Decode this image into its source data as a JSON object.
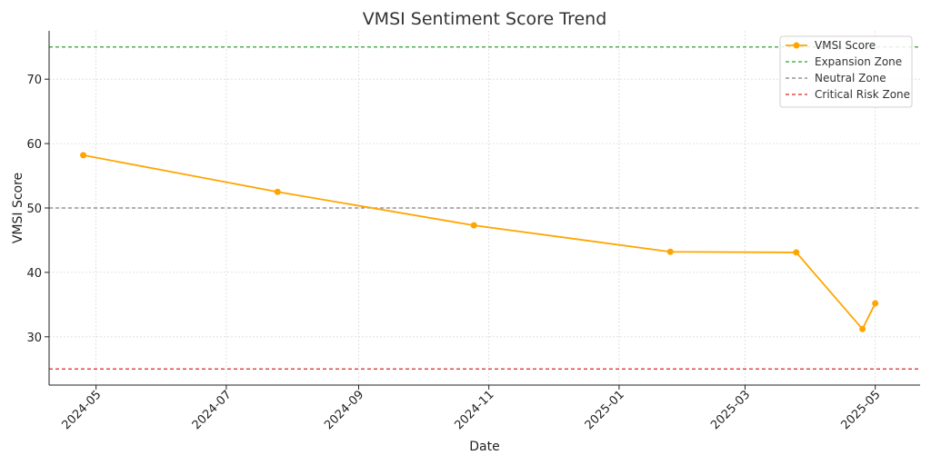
{
  "chart_data": {
    "type": "line",
    "title": "VMSI Sentiment Score Trend",
    "xlabel": "Date",
    "ylabel": "VMSI Score",
    "xlim": [
      "2024-04-09",
      "2025-05-22"
    ],
    "ylim": [
      22.5,
      77.5
    ],
    "grid": true,
    "legend_position": "top-right",
    "x_ticks": [
      "2024-05",
      "2024-07",
      "2024-09",
      "2024-11",
      "2025-01",
      "2025-03",
      "2025-05"
    ],
    "y_ticks": [
      30,
      40,
      50,
      60,
      70
    ],
    "series": [
      {
        "name": "VMSI Score",
        "color": "#FFA500",
        "x": [
          "2024-04-25",
          "2024-07-25",
          "2024-10-25",
          "2025-01-25",
          "2025-03-25",
          "2025-04-25",
          "2025-05-01"
        ],
        "values": [
          58.2,
          52.5,
          47.3,
          43.2,
          43.1,
          31.2,
          35.2
        ]
      }
    ],
    "reference_lines": [
      {
        "name": "Expansion Zone",
        "y": 75,
        "color": "#2ca02c"
      },
      {
        "name": "Neutral Zone",
        "y": 50,
        "color": "#808080"
      },
      {
        "name": "Critical Risk Zone",
        "y": 25,
        "color": "#d62728"
      }
    ]
  }
}
